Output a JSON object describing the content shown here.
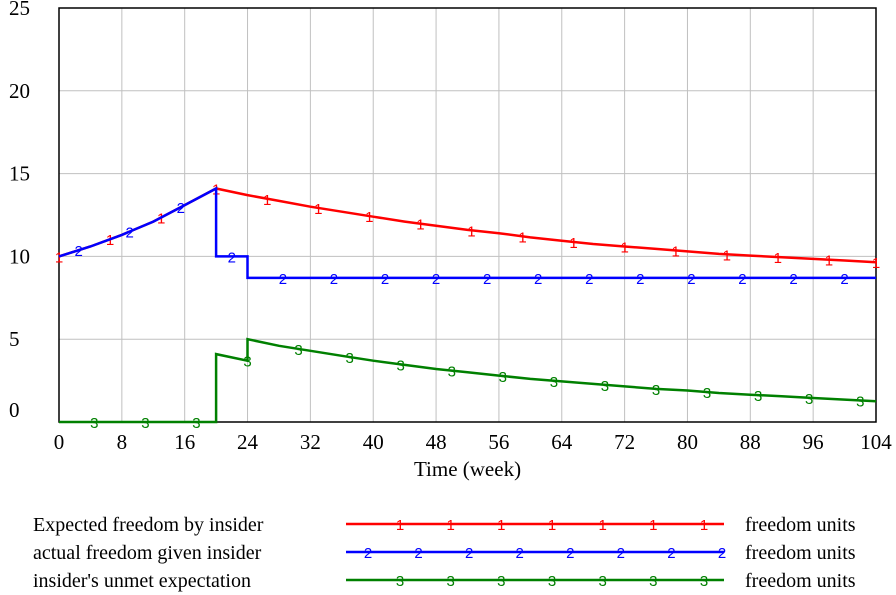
{
  "chart_data": {
    "type": "line",
    "xlabel": "Time (week)",
    "ylabel": "",
    "xlim": [
      0,
      104
    ],
    "ylim": [
      0,
      25
    ],
    "x_ticks": [
      0,
      8,
      16,
      24,
      32,
      40,
      48,
      56,
      64,
      72,
      80,
      88,
      96,
      104
    ],
    "y_ticks": [
      0,
      5,
      10,
      15,
      20,
      25
    ],
    "grid": true,
    "legend_position": "bottom",
    "series": [
      {
        "name": "Expected freedom by insider",
        "units": "freedom units",
        "color": "#ff0000",
        "marker": "1",
        "points": [
          [
            0,
            10.0
          ],
          [
            4,
            10.6
          ],
          [
            8,
            11.3
          ],
          [
            12,
            12.1
          ],
          [
            16,
            13.1
          ],
          [
            20,
            14.1
          ],
          [
            24,
            13.7
          ],
          [
            28,
            13.35
          ],
          [
            32,
            13.0
          ],
          [
            36,
            12.7
          ],
          [
            40,
            12.4
          ],
          [
            44,
            12.1
          ],
          [
            48,
            11.85
          ],
          [
            52,
            11.6
          ],
          [
            56,
            11.4
          ],
          [
            60,
            11.15
          ],
          [
            64,
            10.95
          ],
          [
            68,
            10.75
          ],
          [
            72,
            10.6
          ],
          [
            76,
            10.45
          ],
          [
            80,
            10.3
          ],
          [
            84,
            10.15
          ],
          [
            88,
            10.05
          ],
          [
            92,
            9.95
          ],
          [
            96,
            9.85
          ],
          [
            100,
            9.75
          ],
          [
            104,
            9.65
          ]
        ],
        "marker_x": [
          0,
          6.5,
          13,
          20,
          26.5,
          33,
          39.5,
          46,
          52.5,
          59,
          65.5,
          72,
          78.5,
          85,
          91.5,
          98,
          104
        ]
      },
      {
        "name": "actual freedom given insider",
        "units": "freedom units",
        "color": "#0000ff",
        "marker": "2",
        "points": [
          [
            0,
            10.0
          ],
          [
            4,
            10.6
          ],
          [
            8,
            11.3
          ],
          [
            12,
            12.1
          ],
          [
            16,
            13.1
          ],
          [
            20,
            14.1
          ],
          [
            20,
            10.0
          ],
          [
            24,
            10.0
          ],
          [
            24,
            8.7
          ],
          [
            104,
            8.7
          ]
        ],
        "marker_x": [
          2.5,
          9,
          15.5,
          22,
          28.5,
          35,
          41.5,
          48,
          54.5,
          61,
          67.5,
          74,
          80.5,
          87,
          93.5,
          100
        ]
      },
      {
        "name": "insider's unmet expectation",
        "units": "freedom units",
        "color": "#008000",
        "marker": "3",
        "points": [
          [
            0,
            0
          ],
          [
            20,
            0
          ],
          [
            20,
            4.1
          ],
          [
            24,
            3.7
          ],
          [
            24,
            5.0
          ],
          [
            28,
            4.6
          ],
          [
            32,
            4.3
          ],
          [
            36,
            4.0
          ],
          [
            40,
            3.7
          ],
          [
            44,
            3.45
          ],
          [
            48,
            3.2
          ],
          [
            52,
            3.0
          ],
          [
            56,
            2.8
          ],
          [
            60,
            2.6
          ],
          [
            64,
            2.45
          ],
          [
            68,
            2.3
          ],
          [
            72,
            2.15
          ],
          [
            76,
            2.0
          ],
          [
            80,
            1.9
          ],
          [
            84,
            1.75
          ],
          [
            88,
            1.65
          ],
          [
            92,
            1.55
          ],
          [
            96,
            1.45
          ],
          [
            100,
            1.35
          ],
          [
            104,
            1.25
          ]
        ],
        "marker_x": [
          4.5,
          11,
          17.5,
          24,
          30.5,
          37,
          43.5,
          50,
          56.5,
          63,
          69.5,
          76,
          82.5,
          89,
          95.5,
          102
        ]
      }
    ]
  }
}
